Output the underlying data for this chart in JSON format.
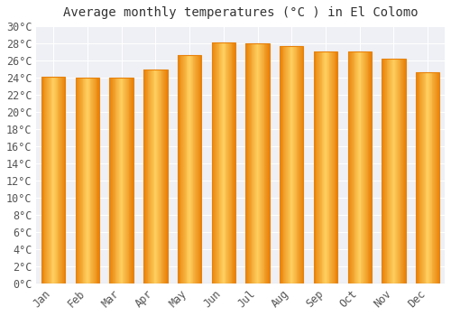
{
  "title": "Average monthly temperatures (°C ) in El Colomo",
  "months": [
    "Jan",
    "Feb",
    "Mar",
    "Apr",
    "May",
    "Jun",
    "Jul",
    "Aug",
    "Sep",
    "Oct",
    "Nov",
    "Dec"
  ],
  "temperatures": [
    24.1,
    24.0,
    24.0,
    25.0,
    26.6,
    28.1,
    28.0,
    27.7,
    27.1,
    27.1,
    26.2,
    24.6
  ],
  "bar_color_edge": "#E8820A",
  "bar_color_center": "#FFD060",
  "bar_color_main": "#FFAA20",
  "ylim": [
    0,
    30
  ],
  "ytick_step": 2,
  "background_color": "#ffffff",
  "plot_bg_color": "#eef0f5",
  "grid_color": "#ffffff",
  "title_fontsize": 10,
  "tick_fontsize": 8.5
}
